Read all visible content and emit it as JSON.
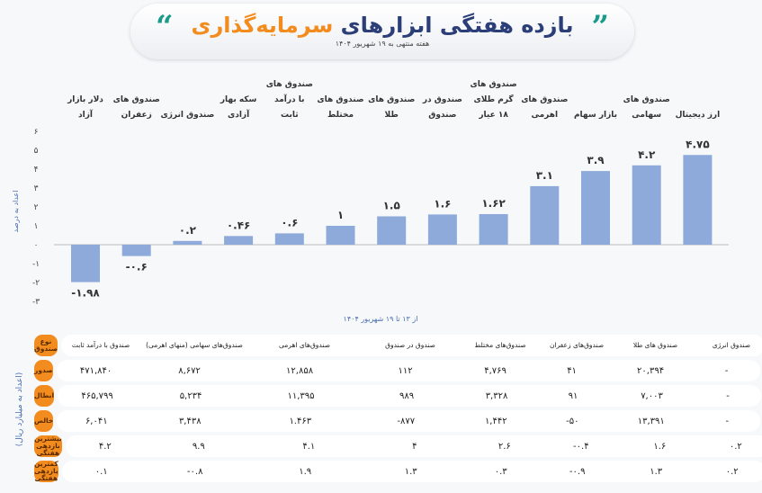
{
  "header": {
    "title_part1": "بازده هفتگی ابزارهای",
    "title_part2": "سرمایه‌گذاری",
    "subtitle": "هفته منتهی به ۱۹ شهریور ۱۴۰۴"
  },
  "chart_data": {
    "type": "bar",
    "categories": [
      "دلار بازار آزاد",
      "صندوق های زعفران",
      "صندوق انرژی",
      "سکه بهار آزادی",
      "صندوق های با درآمد ثابت",
      "صندوق های مختلط",
      "صندوق های طلا",
      "صندوق در صندوق",
      "صندوق های گرم طلای ۱۸ عیار",
      "صندوق های اهرمی",
      "بازار سهام",
      "صندوق های سهامی",
      "ارز دیجیتال"
    ],
    "values": [
      -1.98,
      -0.6,
      0.2,
      0.46,
      0.6,
      1,
      1.5,
      1.6,
      1.62,
      3.1,
      3.9,
      4.2,
      4.75
    ],
    "data_labels": [
      "-۱.۹۸",
      "-۰.۶",
      "۰.۲",
      "۰.۴۶",
      "۰.۶",
      "۱",
      "۱.۵",
      "۱.۶",
      "۱.۶۲",
      "۳.۱",
      "۳.۹",
      "۴.۲",
      "۴.۷۵"
    ],
    "xlabel": "از ۱۳ تا ۱۹ شهریور ۱۴۰۴",
    "ylabel": "اعداد به درصد",
    "ylim": [
      -3,
      6
    ],
    "yticks": [
      6,
      5,
      4,
      3,
      2,
      1,
      0,
      -1,
      -2,
      -3
    ],
    "ytick_labels": [
      "۶",
      "۵",
      "۴",
      "۳",
      "۲",
      "۱",
      "۰",
      "-۱",
      "-۲",
      "-۳"
    ],
    "bar_color": "#8eaadb",
    "grid": false
  },
  "table": {
    "unit_note": "(اعداد به میلیارد ریال)",
    "corner": "نوع صندوق",
    "columns": [
      "صندوق با درآمد ثابت",
      "صندوق‌های سهامی (منهای اهرمی)",
      "صندوق‌های اهرمی",
      "صندوق در صندوق",
      "صندوق‌های مختلط",
      "صندوق‌های زعفران",
      "صندوق های طلا",
      "صندوق انرژی"
    ],
    "rows": [
      {
        "label": "صدور",
        "values": [
          "۴۷۱,۸۴۰",
          "۸,۶۷۲",
          "۱۲,۸۵۸",
          "۱۱۲",
          "۴,۷۶۹",
          "۴۱",
          "۲۰,۳۹۴",
          "-"
        ]
      },
      {
        "label": "ابطال",
        "values": [
          "۴۶۵,۷۹۹",
          "۵,۲۳۴",
          "۱۱,۳۹۵",
          "۹۸۹",
          "۳,۳۲۸",
          "۹۱",
          "۷,۰۰۳",
          "-"
        ]
      },
      {
        "label": "خالص",
        "values": [
          "۶,۰۴۱",
          "۳,۴۳۸",
          "۱.۴۶۳",
          "-۸۷۷",
          "۱,۴۴۲",
          "-۵۰",
          "۱۳,۳۹۱",
          "-"
        ]
      },
      {
        "label": "بیشترین بازدهی هفتگی",
        "values": [
          "۴.۲",
          "۹.۹",
          "۴.۱",
          "۴",
          "۲.۶",
          "-۰.۴",
          "۱.۶",
          "۰.۲"
        ]
      },
      {
        "label": "کمترین بازدهی هفتگی",
        "values": [
          "۰.۱",
          "-۰.۸",
          "۱.۹",
          "۱.۳",
          "۰.۳",
          "-۰.۹",
          "۱.۳",
          "۰.۲"
        ]
      }
    ]
  }
}
